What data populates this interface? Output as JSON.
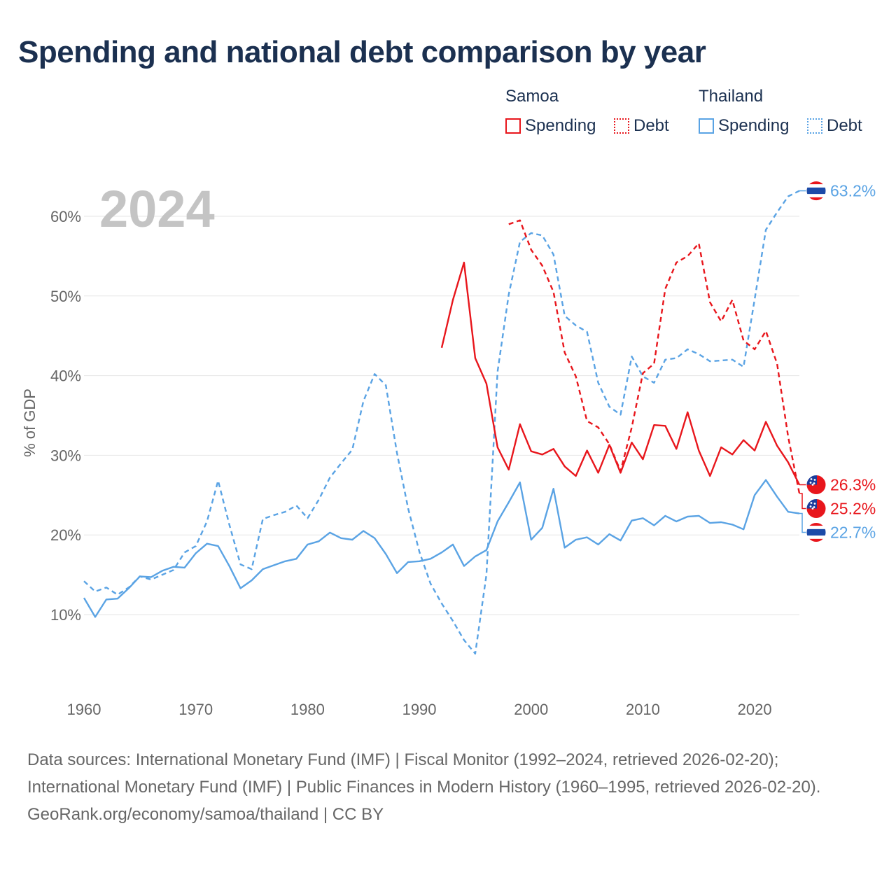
{
  "title": "Spending and national debt comparison by year",
  "legend": {
    "groups": [
      {
        "name": "Samoa",
        "items": [
          "Spending",
          "Debt"
        ],
        "color": "#e8161c"
      },
      {
        "name": "Thailand",
        "items": [
          "Spending",
          "Debt"
        ],
        "color": "#5aa3e4"
      }
    ]
  },
  "footer": {
    "sources": "Data sources: International Monetary Fund (IMF) | Fiscal Monitor (1992–2024, retrieved 2026-02-20); International Monetary Fund (IMF) | Public Finances in Modern History (1960–1995, retrieved 2026-02-20).",
    "credit": "GeoRank.org/economy/samoa/thailand | CC BY"
  },
  "chart_data": {
    "type": "line",
    "title": "Spending and national debt comparison by year",
    "year_label": "2024",
    "ylabel": "% of GDP",
    "xlabel": "",
    "xlim": [
      1960,
      2024
    ],
    "ylim": [
      0,
      65
    ],
    "x_ticks": [
      1960,
      1970,
      1980,
      1990,
      2000,
      2010,
      2020
    ],
    "y_ticks": [
      10,
      20,
      30,
      40,
      50,
      60
    ],
    "y_tick_labels": [
      "10%",
      "20%",
      "30%",
      "40%",
      "50%",
      "60%"
    ],
    "series": [
      {
        "name": "Thailand Debt",
        "country": "Thailand",
        "kind": "Debt",
        "color": "#5aa3e4",
        "dashed": true,
        "start": 1960,
        "values": [
          14.2,
          12.9,
          13.4,
          12.5,
          13.4,
          14.8,
          14.4,
          15.0,
          15.6,
          17.8,
          18.6,
          21.7,
          26.8,
          21.3,
          16.3,
          15.7,
          22.0,
          22.5,
          22.9,
          23.7,
          22.1,
          24.4,
          27.2,
          29.0,
          30.7,
          36.8,
          40.2,
          38.8,
          30.3,
          23.3,
          17.9,
          13.9,
          11.4,
          9.2,
          6.8,
          5.1,
          15.0,
          40.5,
          50.2,
          56.8,
          57.9,
          57.6,
          55.2,
          47.5,
          46.3,
          45.5,
          39.1,
          36.1,
          35.1,
          42.4,
          39.9,
          39.1,
          42.0,
          42.2,
          43.3,
          42.7,
          41.8,
          41.9,
          42.0,
          41.1,
          49.6,
          58.3,
          60.5,
          62.5,
          63.2
        ],
        "end_label": "63.2%"
      },
      {
        "name": "Thailand Spending",
        "country": "Thailand",
        "kind": "Spending",
        "color": "#5aa3e4",
        "dashed": false,
        "start": 1960,
        "values": [
          12.1,
          9.7,
          11.9,
          12.0,
          13.3,
          14.8,
          14.7,
          15.5,
          16.0,
          15.9,
          17.7,
          18.9,
          18.6,
          16.1,
          13.3,
          14.3,
          15.7,
          16.2,
          16.7,
          17.0,
          18.8,
          19.2,
          20.3,
          19.6,
          19.4,
          20.5,
          19.6,
          17.6,
          15.2,
          16.6,
          16.7,
          17.0,
          17.8,
          18.8,
          16.1,
          17.3,
          18.1,
          21.7,
          24.1,
          26.6,
          19.4,
          20.9,
          25.8,
          18.4,
          19.4,
          19.7,
          18.8,
          20.1,
          19.3,
          21.8,
          22.1,
          21.2,
          22.4,
          21.7,
          22.3,
          22.4,
          21.5,
          21.6,
          21.3,
          20.7,
          25.0,
          26.9,
          24.8,
          22.9,
          22.7
        ],
        "end_label": "22.7%"
      },
      {
        "name": "Samoa Spending",
        "country": "Samoa",
        "kind": "Spending",
        "color": "#e8161c",
        "dashed": false,
        "start": 1992,
        "values": [
          43.5,
          49.5,
          54.2,
          42.2,
          39.0,
          31.0,
          28.2,
          33.9,
          30.5,
          30.1,
          30.8,
          28.6,
          27.4,
          30.6,
          27.8,
          31.3,
          27.8,
          31.6,
          29.5,
          33.8,
          33.7,
          30.8,
          35.4,
          30.6,
          27.4,
          31.0,
          30.1,
          31.9,
          30.6,
          34.2,
          31.2,
          29.1,
          26.3
        ],
        "end_label": "26.3%"
      },
      {
        "name": "Samoa Debt",
        "country": "Samoa",
        "kind": "Debt",
        "color": "#e8161c",
        "dashed": true,
        "start": 1998,
        "values": [
          59.0,
          59.5,
          55.8,
          53.8,
          50.5,
          42.9,
          39.9,
          34.3,
          33.5,
          31.4,
          28.0,
          33.5,
          40.3,
          41.5,
          50.9,
          54.2,
          55.0,
          56.6,
          49.2,
          46.8,
          49.5,
          44.4,
          43.3,
          45.6,
          41.5,
          32.3,
          25.2
        ],
        "end_label": "25.2%"
      }
    ],
    "end_label_order": [
      "Thailand Debt",
      "Samoa Spending",
      "Samoa Debt",
      "Thailand Spending"
    ]
  }
}
